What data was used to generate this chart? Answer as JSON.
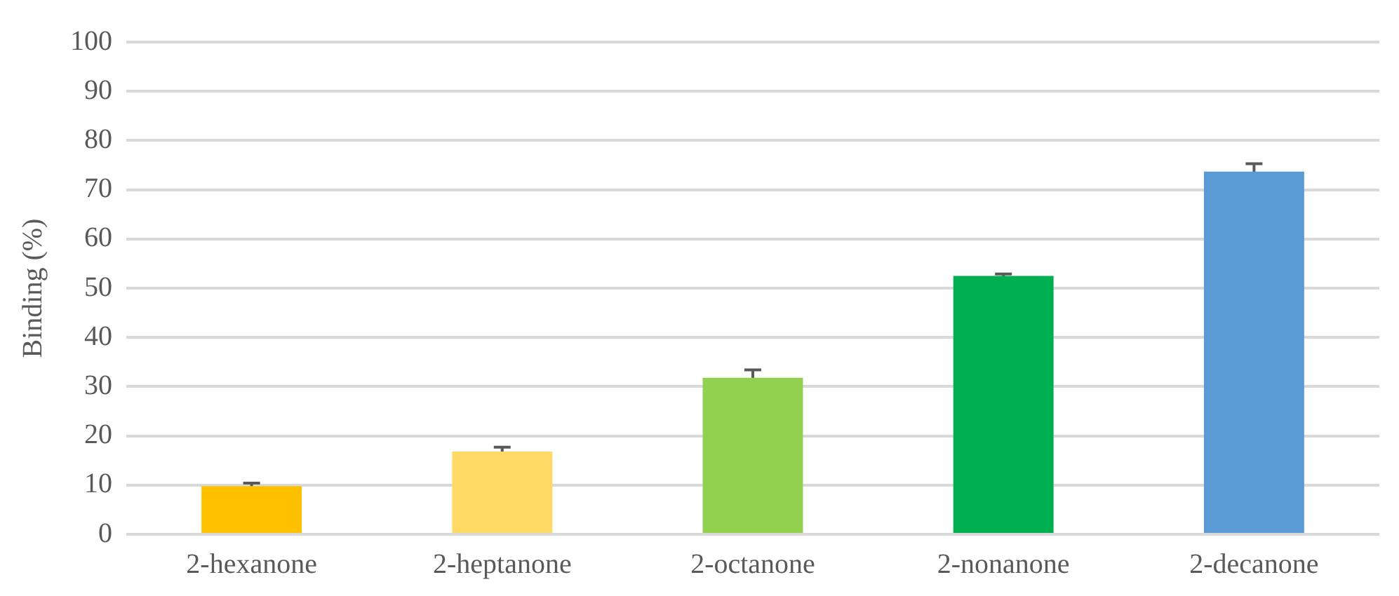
{
  "chart_data": {
    "type": "bar",
    "ylabel": "Binding (%)",
    "categories": [
      "2-hexanone",
      "2-heptanone",
      "2-octanone",
      "2-nonanone",
      "2-decanone"
    ],
    "values": [
      9.8,
      16.8,
      31.8,
      52.5,
      73.7
    ],
    "errors": [
      0.6,
      0.9,
      1.6,
      0.4,
      1.6
    ],
    "colors": [
      "#ffc000",
      "#ffd966",
      "#92d050",
      "#00b050",
      "#5b9bd5"
    ],
    "ylim": [
      0,
      100
    ],
    "yticks": [
      0,
      10,
      20,
      30,
      40,
      50,
      60,
      70,
      80,
      90,
      100
    ],
    "grid": "y",
    "legend": false
  }
}
